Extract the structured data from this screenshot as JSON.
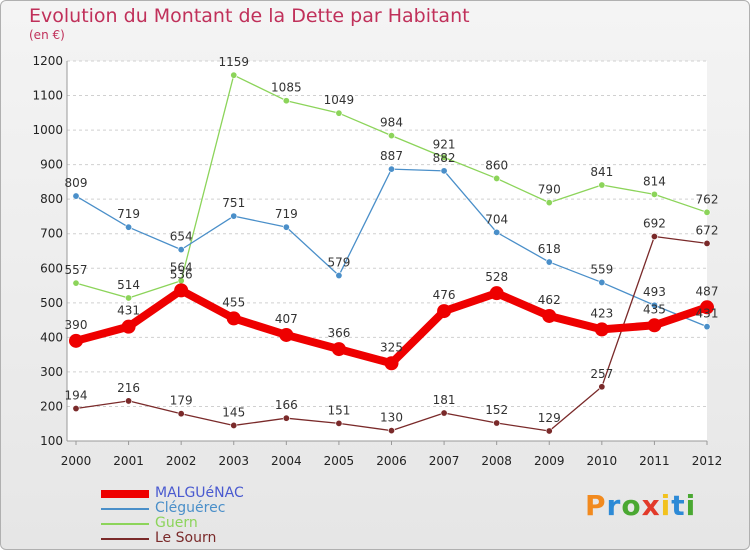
{
  "chart_data": {
    "type": "line",
    "title": "Evolution du Montant de la Dette par Habitant",
    "subtitle": "(en €)",
    "x": [
      "2000",
      "2001",
      "2002",
      "2003",
      "2004",
      "2005",
      "2006",
      "2007",
      "2008",
      "2009",
      "2010",
      "2011",
      "2012"
    ],
    "ylim": [
      100,
      1200
    ],
    "yticks": [
      100,
      200,
      300,
      400,
      500,
      600,
      700,
      800,
      900,
      1000,
      1100,
      1200
    ],
    "grid": "horizontal-dashed",
    "legend_position": "bottom-left",
    "series": [
      {
        "name": "MALGUéNAC",
        "color": "#ee0000",
        "values": [
          390,
          431,
          536,
          455,
          407,
          366,
          325,
          476,
          528,
          462,
          423,
          435,
          487
        ],
        "labels": [
          "390",
          "431",
          "536",
          "455",
          "407",
          "366",
          "325",
          "476",
          "528",
          "462",
          "423",
          "435",
          "487"
        ]
      },
      {
        "name": "Cléguérec",
        "color": "#4a8fc9",
        "values": [
          809,
          719,
          654,
          751,
          719,
          579,
          887,
          882,
          704,
          618,
          559,
          493,
          431
        ],
        "labels": [
          "809",
          "719",
          "654",
          "751",
          "719",
          "579",
          "887",
          "882",
          "704",
          "618",
          "559",
          "493",
          "431"
        ]
      },
      {
        "name": "Guern",
        "color": "#8cd45a",
        "values": [
          557,
          514,
          564,
          1159,
          1085,
          1049,
          984,
          921,
          860,
          790,
          841,
          814,
          762
        ],
        "labels": [
          "557",
          "514",
          "564",
          "1159",
          "1085",
          "1049",
          "984",
          "921",
          "860",
          "790",
          "841",
          "814",
          "762"
        ]
      },
      {
        "name": "Le Sourn",
        "color": "#7a2a2a",
        "values": [
          194,
          216,
          179,
          145,
          166,
          151,
          130,
          181,
          152,
          129,
          257,
          692,
          672
        ],
        "labels": [
          "194",
          "216",
          "179",
          "145",
          "166",
          "151",
          "130",
          "181",
          "152",
          "129",
          "257",
          "692",
          "672"
        ]
      }
    ]
  },
  "logo": {
    "text": "Proxiti",
    "colors": [
      "#f28a1e",
      "#2d8ad6",
      "#4aa832",
      "#e23a2a",
      "#f2c21e",
      "#2d8ad6",
      "#4aa832"
    ]
  }
}
